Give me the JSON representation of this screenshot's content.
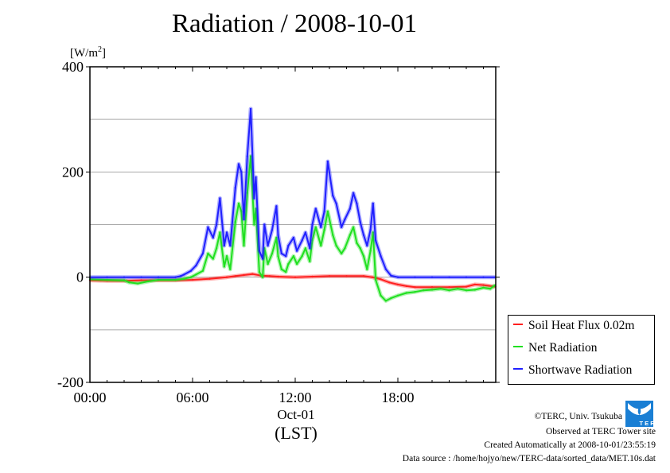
{
  "chart_data": {
    "type": "line",
    "title": "Radiation / 2008-10-01",
    "ylabel": "[W/m2]",
    "ylabel_base": "[W/m",
    "ylabel_sup": "2",
    "ylabel_close": "]",
    "xlabel": "(LST)",
    "x_date_label": "Oct-01",
    "xlim_hours": [
      0,
      23.83
    ],
    "ylim": [
      -200,
      400
    ],
    "yticks": [
      400,
      200,
      0,
      -200
    ],
    "ytick_labels": [
      "400",
      "200",
      "0",
      "-200"
    ],
    "ygrid": [
      300,
      200,
      100,
      0,
      -100
    ],
    "xticks_hours": [
      0,
      6,
      12,
      18
    ],
    "xtick_labels": [
      "00:00",
      "06:00",
      "12:00",
      "18:00"
    ],
    "grid": true,
    "legend_position": "bottom-right-outside",
    "series": [
      {
        "name": "Soil Heat Flux 0.02m",
        "color": "#ff2020",
        "x": [
          0,
          1,
          2,
          3,
          4,
          5,
          6,
          7,
          8,
          8.5,
          9,
          9.5,
          10,
          10.5,
          11,
          12,
          13,
          14,
          15,
          16,
          16.5,
          17,
          17.5,
          18,
          18.5,
          19,
          20,
          21,
          22,
          22.5,
          23,
          23.7
        ],
        "values": [
          -6,
          -7,
          -7,
          -6,
          -6,
          -6,
          -5,
          -3,
          0,
          2,
          4,
          6,
          3,
          2,
          1,
          0,
          1,
          2,
          2,
          2,
          0,
          -4,
          -10,
          -14,
          -17,
          -19,
          -19,
          -19,
          -18,
          -14,
          -15,
          -18
        ]
      },
      {
        "name": "Net Radiation",
        "color": "#20e020",
        "x": [
          0,
          1,
          2,
          2.3,
          2.8,
          3.4,
          4,
          5,
          5.5,
          5.9,
          6.2,
          6.6,
          6.9,
          7.2,
          7.4,
          7.6,
          7.85,
          8.0,
          8.2,
          8.5,
          8.7,
          8.85,
          9.0,
          9.2,
          9.4,
          9.6,
          9.7,
          9.9,
          10.1,
          10.2,
          10.4,
          10.65,
          10.9,
          11.0,
          11.2,
          11.45,
          11.6,
          11.9,
          12.1,
          12.4,
          12.6,
          12.85,
          13.0,
          13.2,
          13.5,
          13.7,
          13.9,
          14.2,
          14.4,
          14.7,
          14.9,
          15.2,
          15.4,
          15.6,
          15.8,
          16.0,
          16.2,
          16.4,
          16.55,
          16.7,
          17.0,
          17.3,
          17.6,
          18.0,
          18.5,
          19.0,
          19.5,
          20,
          20.5,
          21,
          21.5,
          22,
          22.5,
          23,
          23.4,
          23.7
        ],
        "values": [
          -4,
          -5,
          -6,
          -10,
          -12,
          -8,
          -5,
          -5,
          -3,
          0,
          5,
          12,
          45,
          35,
          55,
          85,
          20,
          40,
          15,
          105,
          140,
          125,
          60,
          160,
          230,
          100,
          130,
          10,
          0,
          55,
          25,
          45,
          75,
          40,
          15,
          10,
          25,
          40,
          25,
          40,
          55,
          30,
          70,
          95,
          60,
          90,
          125,
          80,
          60,
          45,
          55,
          80,
          95,
          65,
          55,
          40,
          15,
          50,
          85,
          -5,
          -35,
          -45,
          -40,
          -35,
          -30,
          -28,
          -25,
          -24,
          -22,
          -25,
          -22,
          -25,
          -24,
          -20,
          -22,
          -15
        ]
      },
      {
        "name": "Shortwave Radiation",
        "color": "#2020ff",
        "x": [
          0,
          1,
          2,
          3,
          4,
          5,
          5.3,
          5.5,
          5.9,
          6.2,
          6.6,
          6.9,
          7.2,
          7.4,
          7.6,
          7.85,
          8.0,
          8.2,
          8.5,
          8.7,
          8.85,
          9.0,
          9.2,
          9.4,
          9.6,
          9.7,
          9.9,
          10.1,
          10.2,
          10.4,
          10.65,
          10.9,
          11.0,
          11.2,
          11.45,
          11.6,
          11.9,
          12.1,
          12.4,
          12.6,
          12.85,
          13.0,
          13.2,
          13.5,
          13.7,
          13.9,
          14.2,
          14.4,
          14.7,
          14.9,
          15.2,
          15.4,
          15.6,
          15.8,
          16.0,
          16.2,
          16.4,
          16.55,
          16.7,
          17.0,
          17.3,
          17.6,
          18.0,
          19,
          20,
          21,
          22,
          23,
          23.7
        ],
        "values": [
          0,
          0,
          0,
          0,
          0,
          0,
          2,
          5,
          12,
          22,
          45,
          95,
          75,
          100,
          150,
          60,
          85,
          60,
          170,
          215,
          200,
          110,
          230,
          320,
          150,
          190,
          50,
          35,
          100,
          60,
          90,
          135,
          80,
          45,
          40,
          60,
          75,
          50,
          70,
          85,
          55,
          100,
          130,
          95,
          125,
          220,
          155,
          140,
          95,
          110,
          130,
          160,
          140,
          105,
          80,
          60,
          90,
          140,
          70,
          40,
          15,
          3,
          0,
          0,
          0,
          0,
          0,
          0,
          0
        ]
      }
    ]
  },
  "credits": {
    "copyright": "©TERC, Univ. Tsukuba",
    "observed": "Observed at TERC Tower site",
    "created": "Created Automatically at 2008-10-01/23:55:19",
    "source": "Data source : /home/hojyo/new/TERC-data/sorted_data/MET.10s.dat",
    "logo_text": "TERC",
    "logo_color": "#1a7fd4"
  }
}
